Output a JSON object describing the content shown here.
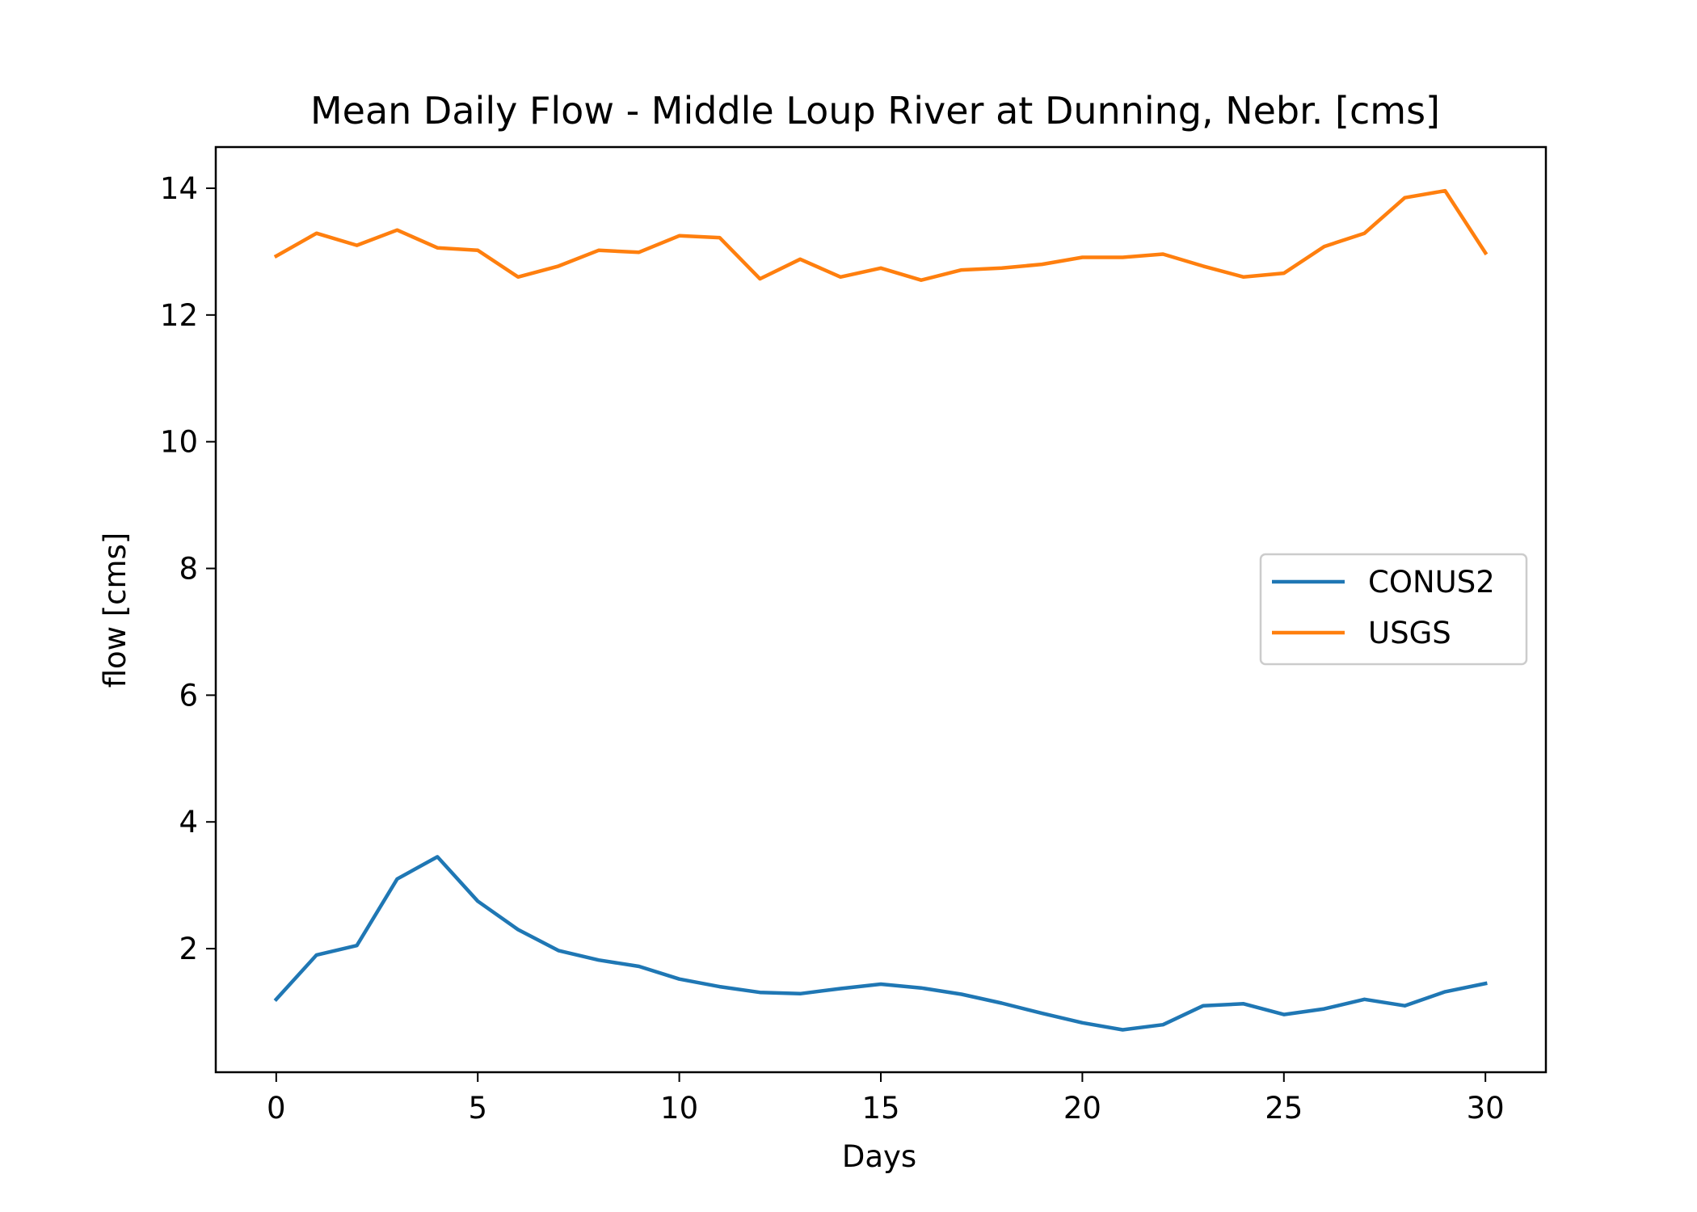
{
  "chart_data": {
    "type": "line",
    "title": "Mean Daily Flow - Middle Loup River at Dunning, Nebr. [cms]",
    "xlabel": "Days",
    "ylabel": "flow [cms]",
    "xlim": [
      -1.5,
      31.5
    ],
    "ylim": [
      0.05,
      14.65
    ],
    "xticks": [
      0,
      5,
      10,
      15,
      20,
      25,
      30
    ],
    "yticks": [
      2,
      4,
      6,
      8,
      10,
      12,
      14
    ],
    "grid": false,
    "legend_position": "center-right",
    "x": [
      0,
      1,
      2,
      3,
      4,
      5,
      6,
      7,
      8,
      9,
      10,
      11,
      12,
      13,
      14,
      15,
      16,
      17,
      18,
      19,
      20,
      21,
      22,
      23,
      24,
      25,
      26,
      27,
      28,
      29,
      30
    ],
    "series": [
      {
        "name": "CONUS2",
        "color": "#1f77b4",
        "values": [
          1.2,
          1.9,
          2.05,
          3.1,
          3.45,
          2.75,
          2.3,
          1.97,
          1.82,
          1.72,
          1.52,
          1.4,
          1.31,
          1.29,
          1.37,
          1.44,
          1.38,
          1.28,
          1.14,
          0.98,
          0.83,
          0.72,
          0.8,
          1.1,
          1.13,
          0.96,
          1.05,
          1.2,
          1.1,
          1.32,
          1.45
        ]
      },
      {
        "name": "USGS",
        "color": "#ff7f0e",
        "values": [
          12.93,
          13.29,
          13.1,
          13.34,
          13.06,
          13.02,
          12.6,
          12.77,
          13.02,
          12.99,
          13.25,
          13.22,
          12.57,
          12.88,
          12.6,
          12.74,
          12.55,
          12.71,
          12.74,
          12.8,
          12.91,
          12.91,
          12.96,
          12.77,
          12.6,
          12.66,
          13.08,
          13.29,
          13.85,
          13.96,
          12.98
        ]
      }
    ]
  }
}
